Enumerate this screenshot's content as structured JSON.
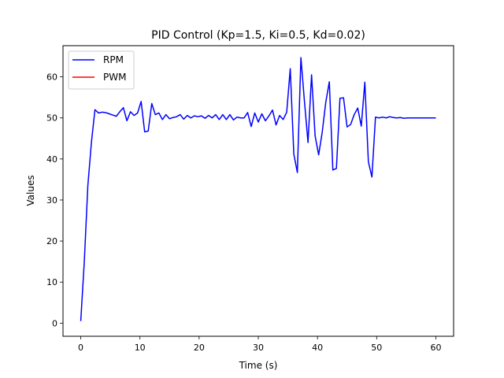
{
  "chart_data": {
    "type": "line",
    "title": "PID Control (Kp=1.5, Ki=0.5, Kd=0.02)",
    "xlabel": "Time (s)",
    "ylabel": "Values",
    "xlim": [
      -3,
      63
    ],
    "ylim": [
      -3.2,
      67.6
    ],
    "xticks": [
      0,
      10,
      20,
      30,
      40,
      50,
      60
    ],
    "yticks": [
      0,
      10,
      20,
      30,
      40,
      50,
      60
    ],
    "grid": false,
    "legend_position": "top-left",
    "series": [
      {
        "name": "RPM",
        "color": "#0000ff",
        "x": [
          0.0,
          0.6,
          1.2,
          1.8,
          2.4,
          3.0,
          3.6,
          4.2,
          4.8,
          5.4,
          6.0,
          6.6,
          7.2,
          7.8,
          8.4,
          9.0,
          9.6,
          10.2,
          10.8,
          11.4,
          12.0,
          12.6,
          13.2,
          13.8,
          14.4,
          15.0,
          15.6,
          16.2,
          16.8,
          17.4,
          18.0,
          18.6,
          19.2,
          19.8,
          20.4,
          21.0,
          21.6,
          22.2,
          22.8,
          23.4,
          24.0,
          24.6,
          25.2,
          25.8,
          26.4,
          27.0,
          27.6,
          28.2,
          28.8,
          29.4,
          30.0,
          30.6,
          31.2,
          31.8,
          32.4,
          33.0,
          33.6,
          34.2,
          34.8,
          35.4,
          36.0,
          36.6,
          37.2,
          37.8,
          38.4,
          39.0,
          39.6,
          40.2,
          40.8,
          41.4,
          42.0,
          42.6,
          43.2,
          43.8,
          44.4,
          45.0,
          45.6,
          46.2,
          46.8,
          47.4,
          48.0,
          48.6,
          49.2,
          49.8,
          50.4,
          51.0,
          51.6,
          52.2,
          52.8,
          53.4,
          54.0,
          54.6,
          55.2,
          55.8,
          56.4,
          57.0,
          57.6,
          58.2,
          58.8,
          59.4,
          60.0
        ],
        "y": [
          0.5,
          15.0,
          33.5,
          44.0,
          52.0,
          51.2,
          51.4,
          51.3,
          51.0,
          50.7,
          50.4,
          51.5,
          52.5,
          49.3,
          51.5,
          50.6,
          51.2,
          54.0,
          46.6,
          46.8,
          53.5,
          50.8,
          51.2,
          49.6,
          50.8,
          49.8,
          50.1,
          50.3,
          50.8,
          49.7,
          50.6,
          50.0,
          50.5,
          50.3,
          50.5,
          49.9,
          50.6,
          50.0,
          50.8,
          49.6,
          50.8,
          49.6,
          50.8,
          49.5,
          50.2,
          50.0,
          50.0,
          51.3,
          47.9,
          51.2,
          49.0,
          51.0,
          49.3,
          50.5,
          51.9,
          48.3,
          50.6,
          49.6,
          51.4,
          62.0,
          41.2,
          36.7,
          64.7,
          54.0,
          44.0,
          60.5,
          45.6,
          41.0,
          46.5,
          53.8,
          58.8,
          37.3,
          37.7,
          54.8,
          54.9,
          47.8,
          48.4,
          50.8,
          52.4,
          48.0,
          58.7,
          39.3,
          35.6,
          50.2,
          50.0,
          50.2,
          50.0,
          50.3,
          50.1,
          50.0,
          50.1,
          49.9,
          50.0,
          50.0,
          50.0,
          50.0,
          50.0,
          50.0,
          50.0,
          50.0,
          50.0
        ],
        "y_note": ""
      },
      {
        "name": "PWM",
        "color": "#ff0000",
        "x": [],
        "y": []
      }
    ]
  }
}
